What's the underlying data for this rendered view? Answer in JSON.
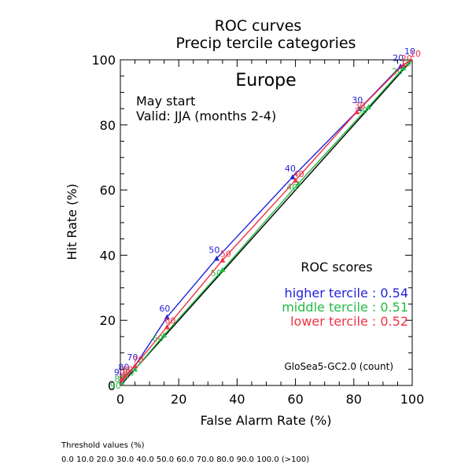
{
  "chart_data": {
    "type": "line",
    "title": "ROC curves",
    "subtitle": "Precip tercile categories",
    "region": "Europe",
    "start_text": "May start",
    "valid_text": "Valid: JJA (months 2-4)",
    "xlabel": "False Alarm Rate (%)",
    "ylabel": "Hit Rate (%)",
    "xlim": [
      0,
      100
    ],
    "ylim": [
      0,
      100
    ],
    "x_ticks": [
      "0",
      "20",
      "40",
      "60",
      "80",
      "100"
    ],
    "y_ticks": [
      "0",
      "20",
      "40",
      "60",
      "80",
      "100"
    ],
    "grid": false,
    "diagonal": true,
    "legend_title": "ROC scores",
    "legend_position": "right-middle",
    "model_text": "GloSea5-GC2.0 (count)",
    "footer_title": "Threshold values (%)",
    "footer_values": "0.0 10.0 20.0 30.0 40.0 50.0 60.0 70.0 80.0 90.0 100.0 (>100)",
    "series": [
      {
        "name": "higher tercile",
        "score_label": "higher tercile : 0.54",
        "color": "#2222dd",
        "points": [
          [
            0,
            0
          ],
          [
            0.5,
            1.5
          ],
          [
            2,
            3
          ],
          [
            5,
            6
          ],
          [
            16,
            21
          ],
          [
            33,
            39
          ],
          [
            59,
            64
          ],
          [
            82,
            85
          ],
          [
            96,
            98
          ],
          [
            100,
            100
          ]
        ],
        "labels": [
          "90",
          "80",
          "70",
          "60",
          "50",
          "40",
          "30",
          "20",
          "10"
        ]
      },
      {
        "name": "middle tercile",
        "score_label": "middle tercile : 0.51",
        "color": "#22bb44",
        "points": [
          [
            0,
            0
          ],
          [
            0.5,
            1
          ],
          [
            2,
            3
          ],
          [
            5,
            5
          ],
          [
            15,
            15.5
          ],
          [
            35,
            35.5
          ],
          [
            61,
            62
          ],
          [
            85,
            85.5
          ],
          [
            97,
            97.5
          ],
          [
            100,
            100
          ]
        ],
        "labels": [
          "90",
          "80",
          "70",
          "60",
          "50",
          "40",
          "30",
          "20",
          "10"
        ]
      },
      {
        "name": "lower tercile",
        "score_label": "lower tercile : 0.52",
        "color": "#ee3344",
        "points": [
          [
            0,
            0
          ],
          [
            0.5,
            2
          ],
          [
            1.5,
            3
          ],
          [
            5,
            6
          ],
          [
            16,
            18
          ],
          [
            35,
            38.5
          ],
          [
            60,
            63
          ],
          [
            81,
            84
          ],
          [
            97,
            98.5
          ],
          [
            100,
            100
          ]
        ],
        "labels": [
          "90",
          "80",
          "70",
          "60",
          "50",
          "40",
          "30",
          "20",
          "10"
        ]
      }
    ]
  }
}
